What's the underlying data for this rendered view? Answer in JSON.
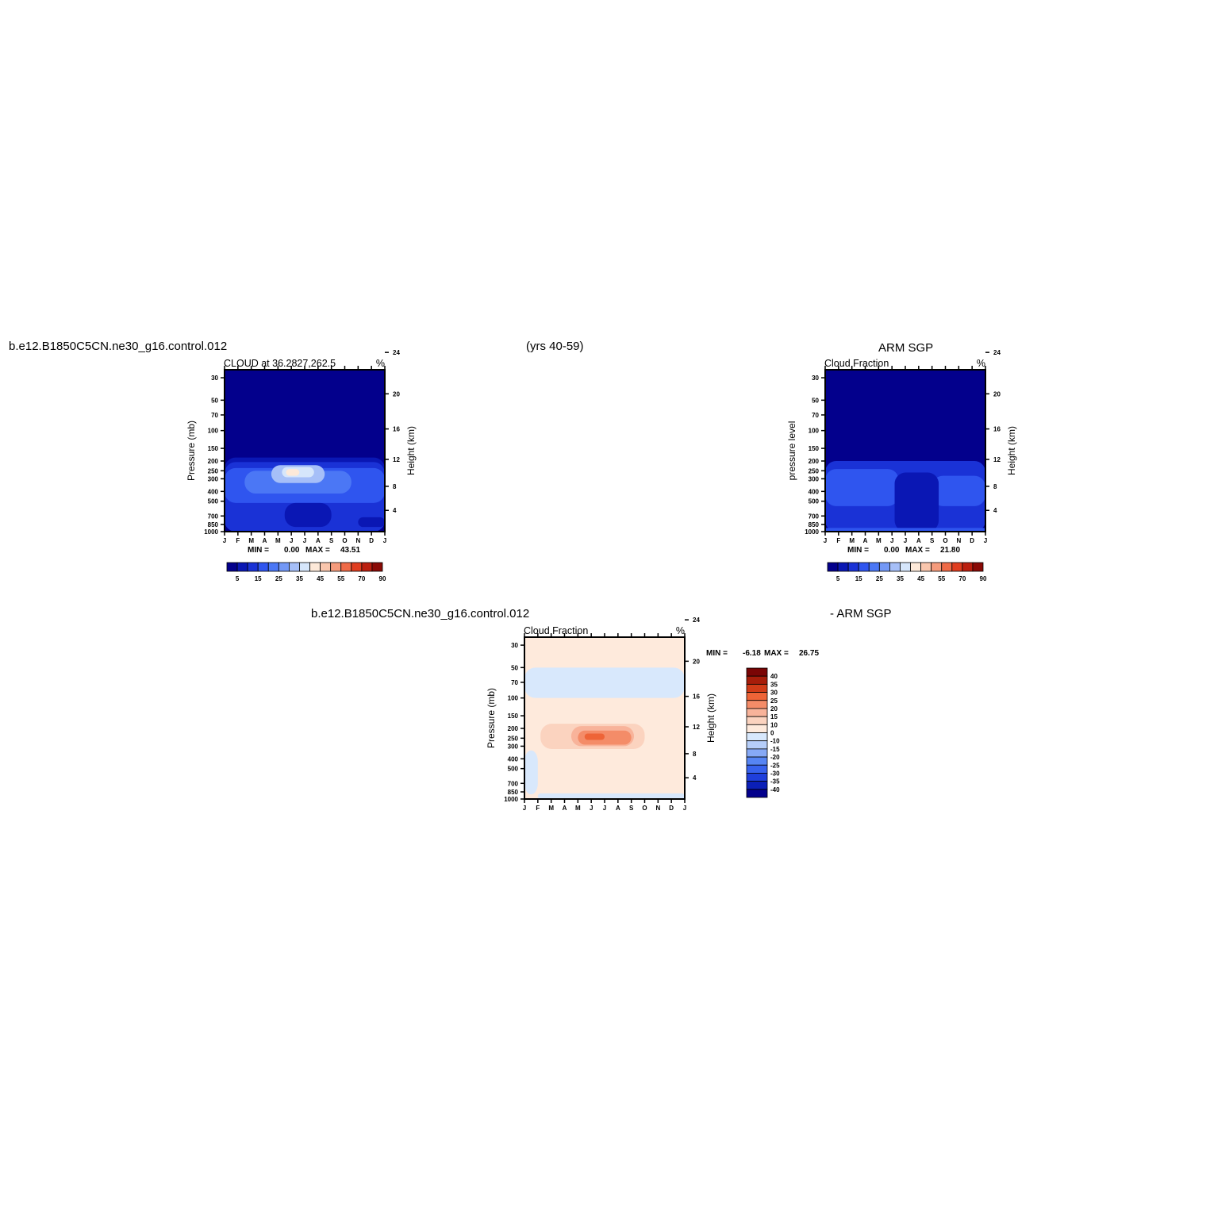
{
  "header": {
    "model_case": "b.e12.B1850C5CN.ne30_g16.control.012",
    "years": "(yrs 40-59)",
    "obs_name": "ARM SGP",
    "diff_left": "b.e12.B1850C5CN.ne30_g16.control.012",
    "diff_right": "- ARM SGP"
  },
  "palettes": {
    "cloud": [
      "#03008c",
      "#0a17b4",
      "#1a32d6",
      "#2f55ef",
      "#4b77f5",
      "#7398f6",
      "#a6bff8",
      "#d6e6fb",
      "#fde9d9",
      "#f9c6ad",
      "#f59b7c",
      "#ef6a47",
      "#e03d1f",
      "#bb1f0f",
      "#8a0a06"
    ],
    "diff": [
      "#03008c",
      "#0b1fb8",
      "#1f3fdc",
      "#3762ee",
      "#5685f4",
      "#86a9f6",
      "#b6cef9",
      "#d8e8fc",
      "#feeadc",
      "#fbd3bf",
      "#f8b39a",
      "#f48c68",
      "#ee6437",
      "#d13c18",
      "#a71d0a",
      "#7a0505"
    ]
  },
  "chart_data": [
    {
      "type": "heatmap",
      "title": "CLOUD at 36.2827,262.5",
      "units": "%",
      "xlabel": "",
      "ylabel": "Pressure (mb)",
      "ylabel_right": "Height (km)",
      "x_tick_labels": [
        "J",
        "F",
        "M",
        "A",
        "M",
        "J",
        "J",
        "A",
        "S",
        "O",
        "N",
        "D",
        "J"
      ],
      "y_ticks": [
        30,
        50,
        70,
        100,
        150,
        200,
        250,
        300,
        400,
        500,
        700,
        850,
        1000
      ],
      "y_ticks_right": [
        4,
        8,
        12,
        16,
        20,
        24
      ],
      "yscale": "log",
      "ylim": [
        1000,
        25
      ],
      "min_label": "MIN =",
      "min": "0.00",
      "max_label": "MAX =",
      "max": "43.51",
      "colorbar_labels": [
        "5",
        "15",
        "25",
        "35",
        "45",
        "55",
        "70",
        "90"
      ],
      "regions": [
        {
          "months": [
            0,
            12
          ],
          "p": [
            25,
            1000
          ],
          "level": 0
        },
        {
          "months": [
            0,
            12
          ],
          "p": [
            185,
            1000
          ],
          "level": 1
        },
        {
          "months": [
            0,
            12
          ],
          "p": [
            205,
            1000
          ],
          "level": 2
        },
        {
          "months": [
            0,
            12
          ],
          "p": [
            235,
            520
          ],
          "level": 3
        },
        {
          "months": [
            1.5,
            9.5
          ],
          "p": [
            250,
            420
          ],
          "level": 4
        },
        {
          "months": [
            3.5,
            7.5
          ],
          "p": [
            220,
            330
          ],
          "level": 6
        },
        {
          "months": [
            4.3,
            6.7
          ],
          "p": [
            230,
            290
          ],
          "level": 7
        },
        {
          "months": [
            4.6,
            5.6
          ],
          "p": [
            240,
            280
          ],
          "level": 8
        },
        {
          "months": [
            4.5,
            8.0
          ],
          "p": [
            520,
            900
          ],
          "level": 1
        },
        {
          "months": [
            10,
            12
          ],
          "p": [
            720,
            900
          ],
          "level": 1
        }
      ]
    },
    {
      "type": "heatmap",
      "title": "Cloud Fraction",
      "units": "%",
      "xlabel": "",
      "ylabel": "pressure level",
      "ylabel_right": "Height (km)",
      "x_tick_labels": [
        "J",
        "F",
        "M",
        "A",
        "M",
        "J",
        "J",
        "A",
        "S",
        "O",
        "N",
        "D",
        "J"
      ],
      "y_ticks": [
        30,
        50,
        70,
        100,
        150,
        200,
        250,
        300,
        400,
        500,
        700,
        850,
        1000
      ],
      "y_ticks_right": [
        4,
        8,
        12,
        16,
        20,
        24
      ],
      "yscale": "log",
      "ylim": [
        1000,
        25
      ],
      "min_label": "MIN =",
      "min": "0.00",
      "max_label": "MAX =",
      "max": "21.80",
      "colorbar_labels": [
        "5",
        "15",
        "25",
        "35",
        "45",
        "55",
        "70",
        "90"
      ],
      "regions": [
        {
          "months": [
            0,
            12
          ],
          "p": [
            25,
            1000
          ],
          "level": 0
        },
        {
          "months": [
            0,
            12
          ],
          "p": [
            200,
            1000
          ],
          "level": 2
        },
        {
          "months": [
            0,
            5.5
          ],
          "p": [
            240,
            560
          ],
          "level": 3
        },
        {
          "months": [
            8,
            12
          ],
          "p": [
            280,
            560
          ],
          "level": 3
        },
        {
          "months": [
            5.2,
            8.5
          ],
          "p": [
            260,
            1000
          ],
          "level": 1
        },
        {
          "months": [
            0,
            5
          ],
          "p": [
            600,
            900
          ],
          "level": 2
        },
        {
          "months": [
            0,
            12
          ],
          "p": [
            920,
            1000
          ],
          "level": 3
        }
      ]
    },
    {
      "type": "heatmap",
      "title": "Cloud Fraction",
      "units": "%",
      "xlabel": "",
      "ylabel": "Pressure (mb)",
      "ylabel_right": "Height (km)",
      "x_tick_labels": [
        "J",
        "F",
        "M",
        "A",
        "M",
        "J",
        "J",
        "A",
        "S",
        "O",
        "N",
        "D",
        "J"
      ],
      "y_ticks": [
        30,
        50,
        70,
        100,
        150,
        200,
        250,
        300,
        400,
        500,
        700,
        850,
        1000
      ],
      "y_ticks_right": [
        4,
        8,
        12,
        16,
        20,
        24
      ],
      "yscale": "log",
      "ylim": [
        1000,
        25
      ],
      "min_label": "MIN =",
      "min": "-6.18",
      "max_label": "MAX =",
      "max": "26.75",
      "colorbar_labels": [
        "40",
        "35",
        "30",
        "25",
        "20",
        "15",
        "10",
        "0",
        "-10",
        "-15",
        "-20",
        "-25",
        "-30",
        "-35",
        "-40"
      ],
      "regions": [
        {
          "months": [
            0,
            12
          ],
          "p": [
            25,
            1000
          ],
          "level": 8
        },
        {
          "months": [
            0,
            12
          ],
          "p": [
            50,
            100
          ],
          "level": 7
        },
        {
          "months": [
            0,
            1
          ],
          "p": [
            330,
            900
          ],
          "level": 7
        },
        {
          "months": [
            1,
            12
          ],
          "p": [
            880,
            1000
          ],
          "level": 7
        },
        {
          "months": [
            1.2,
            9.0
          ],
          "p": [
            180,
            320
          ],
          "level": 9
        },
        {
          "months": [
            3.5,
            8.2
          ],
          "p": [
            190,
            300
          ],
          "level": 10
        },
        {
          "months": [
            4.0,
            8.0
          ],
          "p": [
            210,
            290
          ],
          "level": 11
        },
        {
          "months": [
            4.5,
            6.0
          ],
          "p": [
            225,
            260
          ],
          "level": 12
        }
      ]
    }
  ]
}
